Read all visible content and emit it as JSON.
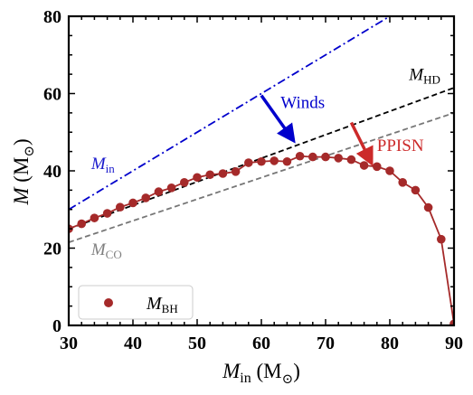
{
  "chart_data": {
    "type": "line",
    "xlim": [
      30,
      90
    ],
    "ylim": [
      0,
      80
    ],
    "x_ticks": [
      30,
      40,
      50,
      60,
      70,
      80,
      90
    ],
    "y_ticks": [
      0,
      20,
      40,
      60,
      80
    ],
    "xlabel": {
      "main": "M",
      "sub": "in",
      "unit": " (M",
      "unit_sub": "⊙",
      "close": ")"
    },
    "ylabel": {
      "main": "M",
      "unit": " (M",
      "unit_sub": "⊙",
      "close": ")"
    },
    "legend": {
      "position": "lower-left",
      "main": "M",
      "sub": "BH"
    },
    "series": [
      {
        "name": "M_in",
        "style": "dash-dot",
        "color": "#0000cc",
        "x": [
          30,
          90
        ],
        "y": [
          30,
          90
        ]
      },
      {
        "name": "M_HD",
        "style": "dashed",
        "color": "#000000",
        "x": [
          30,
          90
        ],
        "y": [
          25,
          61.5
        ]
      },
      {
        "name": "M_CO",
        "style": "dashed",
        "color": "#777777",
        "x": [
          30,
          90
        ],
        "y": [
          21.5,
          55
        ]
      },
      {
        "name": "M_BH",
        "style": "line-markers",
        "color": "#a52a2a",
        "x": [
          30,
          32,
          34,
          36,
          38,
          40,
          42,
          44,
          46,
          48,
          50,
          52,
          54,
          56,
          58,
          60,
          62,
          64,
          66,
          68,
          70,
          72,
          74,
          76,
          78,
          80,
          82,
          84,
          86,
          88,
          90
        ],
        "y": [
          25.0,
          26.3,
          27.8,
          29.0,
          30.6,
          31.7,
          33.0,
          34.6,
          35.6,
          37.0,
          38.3,
          39.0,
          39.3,
          39.8,
          42.1,
          42.4,
          42.6,
          42.4,
          43.8,
          43.6,
          43.6,
          43.3,
          42.9,
          41.4,
          41.1,
          40.0,
          37.0,
          35.0,
          30.5,
          22.3,
          0.4
        ]
      }
    ],
    "annotations": [
      {
        "main": "M",
        "sub": "in",
        "color": "#1a1acc",
        "x": 33.5,
        "y": 40.5
      },
      {
        "main": "M",
        "sub": "HD",
        "color": "#000000",
        "x": 83,
        "y": 63.5
      },
      {
        "main": "M",
        "sub": "CO",
        "color": "#808080",
        "x": 33.5,
        "y": 18.3
      },
      {
        "text": "Winds",
        "color": "#0000cc",
        "x": 63,
        "y": 56.3
      },
      {
        "text": "PPISN",
        "color": "#cc2a2a",
        "x": 78,
        "y": 45.2
      }
    ],
    "arrows": [
      {
        "name": "winds-arrow",
        "color": "#0000cc",
        "from": [
          60,
          59.5
        ],
        "to": [
          64.8,
          48.3
        ]
      },
      {
        "name": "ppisn-arrow",
        "color": "#cc2a2a",
        "from": [
          74,
          52.5
        ],
        "to": [
          77,
          42.5
        ]
      }
    ]
  }
}
